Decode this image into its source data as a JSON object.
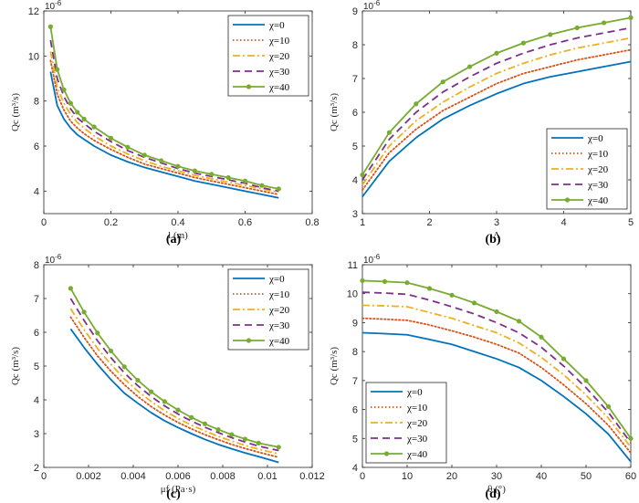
{
  "series_styles": [
    {
      "name": "χ=0",
      "color": "#0072BD",
      "dash": "",
      "marker": false
    },
    {
      "name": "χ=10",
      "color": "#D95319",
      "dash": "1.5,2.5",
      "marker": false
    },
    {
      "name": "χ=20",
      "color": "#EDB120",
      "dash": "8,3,2,3",
      "marker": false
    },
    {
      "name": "χ=30",
      "color": "#7E2F8E",
      "dash": "8,5",
      "marker": false
    },
    {
      "name": "χ=40",
      "color": "#77AC30",
      "dash": "",
      "marker": true
    }
  ],
  "chart_data": [
    {
      "id": "a",
      "panel_label": "(a)",
      "type": "line",
      "xlabel": "l (m)",
      "ylabel": "Qc (m³/s)",
      "exponent": "10-6",
      "xlim": [
        0,
        0.8
      ],
      "ylim": [
        3,
        12
      ],
      "xticks": [
        0,
        0.2,
        0.4,
        0.6,
        0.8
      ],
      "xtick_labels": [
        "0",
        "0.2",
        "0.4",
        "0.6",
        "0.8"
      ],
      "yticks": [
        4,
        6,
        8,
        10,
        12
      ],
      "ytick_labels": [
        "4",
        "6",
        "8",
        "10",
        "12"
      ],
      "legend": "top-right",
      "x": [
        0.02,
        0.04,
        0.06,
        0.08,
        0.1,
        0.12,
        0.15,
        0.2,
        0.25,
        0.3,
        0.35,
        0.4,
        0.45,
        0.5,
        0.55,
        0.6,
        0.65,
        0.7
      ],
      "series": [
        {
          "name": "χ=0",
          "values": [
            9.3,
            7.8,
            7.2,
            6.8,
            6.5,
            6.3,
            6.0,
            5.6,
            5.3,
            5.05,
            4.85,
            4.65,
            4.45,
            4.3,
            4.15,
            4.0,
            3.85,
            3.7
          ]
        },
        {
          "name": "χ=10",
          "values": [
            9.8,
            8.3,
            7.6,
            7.1,
            6.8,
            6.55,
            6.25,
            5.85,
            5.5,
            5.2,
            5.0,
            4.8,
            4.6,
            4.45,
            4.3,
            4.15,
            4.0,
            3.85
          ]
        },
        {
          "name": "χ=20",
          "values": [
            10.2,
            8.6,
            7.9,
            7.4,
            7.05,
            6.8,
            6.45,
            6.0,
            5.65,
            5.35,
            5.1,
            4.9,
            4.7,
            4.55,
            4.4,
            4.25,
            4.1,
            3.95
          ]
        },
        {
          "name": "χ=30",
          "values": [
            10.7,
            9.0,
            8.2,
            7.65,
            7.25,
            7.0,
            6.65,
            6.2,
            5.8,
            5.5,
            5.25,
            5.0,
            4.8,
            4.65,
            4.5,
            4.35,
            4.15,
            4.0
          ]
        },
        {
          "name": "χ=40",
          "values": [
            11.3,
            9.4,
            8.5,
            7.9,
            7.5,
            7.2,
            6.85,
            6.35,
            5.95,
            5.6,
            5.35,
            5.1,
            4.9,
            4.75,
            4.6,
            4.45,
            4.25,
            4.1
          ]
        }
      ]
    },
    {
      "id": "b",
      "panel_label": "(b)",
      "type": "line",
      "xlabel": "Λ",
      "ylabel": "Qc (m³/s)",
      "exponent": "10-6",
      "xlim": [
        1,
        5
      ],
      "ylim": [
        3,
        9
      ],
      "xticks": [
        1,
        2,
        3,
        4,
        5
      ],
      "xtick_labels": [
        "1",
        "2",
        "3",
        "4",
        "5"
      ],
      "yticks": [
        3,
        4,
        5,
        6,
        7,
        8,
        9
      ],
      "ytick_labels": [
        "3",
        "4",
        "5",
        "6",
        "7",
        "8",
        "9"
      ],
      "legend": "bottom-right",
      "x": [
        1,
        1.4,
        1.8,
        2.2,
        2.6,
        3.0,
        3.4,
        3.8,
        4.2,
        4.6,
        5.0
      ],
      "series": [
        {
          "name": "χ=0",
          "values": [
            3.5,
            4.55,
            5.25,
            5.8,
            6.2,
            6.55,
            6.85,
            7.05,
            7.2,
            7.35,
            7.5
          ]
        },
        {
          "name": "χ=10",
          "values": [
            3.7,
            4.8,
            5.5,
            6.05,
            6.45,
            6.85,
            7.15,
            7.35,
            7.55,
            7.7,
            7.85
          ]
        },
        {
          "name": "χ=20",
          "values": [
            3.85,
            5.0,
            5.75,
            6.3,
            6.75,
            7.15,
            7.45,
            7.7,
            7.9,
            8.05,
            8.2
          ]
        },
        {
          "name": "χ=30",
          "values": [
            4.0,
            5.2,
            6.0,
            6.6,
            7.05,
            7.45,
            7.75,
            8.0,
            8.2,
            8.35,
            8.5
          ]
        },
        {
          "name": "χ=40",
          "values": [
            4.15,
            5.4,
            6.25,
            6.9,
            7.35,
            7.75,
            8.05,
            8.3,
            8.5,
            8.65,
            8.8
          ]
        }
      ]
    },
    {
      "id": "c",
      "panel_label": "(c)",
      "type": "line",
      "xlabel": "μf (Pa·s)",
      "ylabel": "Qc (m³/s)",
      "exponent": "10-6",
      "xlim": [
        0,
        0.012
      ],
      "ylim": [
        2,
        8
      ],
      "xticks": [
        0,
        0.002,
        0.004,
        0.006,
        0.008,
        0.01,
        0.012
      ],
      "xtick_labels": [
        "0",
        "0.002",
        "0.004",
        "0.006",
        "0.008",
        "0.01",
        "0.012"
      ],
      "yticks": [
        2,
        3,
        4,
        5,
        6,
        7,
        8
      ],
      "ytick_labels": [
        "2",
        "3",
        "4",
        "5",
        "6",
        "7",
        "8"
      ],
      "legend": "top-right",
      "x": [
        0.0012,
        0.0018,
        0.0024,
        0.003,
        0.0036,
        0.0042,
        0.0048,
        0.0054,
        0.006,
        0.0066,
        0.0072,
        0.0078,
        0.0084,
        0.009,
        0.0096,
        0.0105
      ],
      "series": [
        {
          "name": "χ=0",
          "values": [
            6.1,
            5.55,
            5.05,
            4.6,
            4.2,
            3.9,
            3.62,
            3.38,
            3.18,
            3.0,
            2.83,
            2.68,
            2.55,
            2.43,
            2.32,
            2.15
          ]
        },
        {
          "name": "χ=10",
          "values": [
            6.45,
            5.85,
            5.3,
            4.85,
            4.45,
            4.1,
            3.8,
            3.55,
            3.33,
            3.14,
            2.97,
            2.82,
            2.68,
            2.56,
            2.45,
            2.3
          ]
        },
        {
          "name": "χ=20",
          "values": [
            6.7,
            6.08,
            5.52,
            5.05,
            4.62,
            4.26,
            3.95,
            3.68,
            3.45,
            3.25,
            3.08,
            2.92,
            2.78,
            2.65,
            2.54,
            2.4
          ]
        },
        {
          "name": "χ=30",
          "values": [
            7.0,
            6.35,
            5.75,
            5.25,
            4.8,
            4.42,
            4.1,
            3.82,
            3.58,
            3.37,
            3.19,
            3.03,
            2.88,
            2.75,
            2.63,
            2.5
          ]
        },
        {
          "name": "χ=40",
          "values": [
            7.3,
            6.6,
            5.98,
            5.45,
            4.98,
            4.58,
            4.24,
            3.95,
            3.7,
            3.48,
            3.29,
            3.12,
            2.97,
            2.84,
            2.72,
            2.6
          ]
        }
      ]
    },
    {
      "id": "d",
      "panel_label": "(d)",
      "type": "line",
      "xlabel": "θ (°)",
      "ylabel": "Qc (m³/s)",
      "exponent": "10-6",
      "xlim": [
        0,
        60
      ],
      "ylim": [
        4,
        11
      ],
      "xticks": [
        0,
        10,
        20,
        30,
        40,
        50,
        60
      ],
      "xtick_labels": [
        "0",
        "10",
        "20",
        "30",
        "40",
        "50",
        "60"
      ],
      "yticks": [
        4,
        5,
        6,
        7,
        8,
        9,
        10,
        11
      ],
      "ytick_labels": [
        "4",
        "5",
        "6",
        "7",
        "8",
        "9",
        "10",
        "11"
      ],
      "legend": "bottom-left",
      "x": [
        0,
        5,
        10,
        15,
        20,
        25,
        30,
        35,
        40,
        45,
        50,
        55,
        60
      ],
      "series": [
        {
          "name": "χ=0",
          "values": [
            8.65,
            8.62,
            8.58,
            8.42,
            8.25,
            8.0,
            7.75,
            7.45,
            7.0,
            6.45,
            5.85,
            5.15,
            4.2
          ]
        },
        {
          "name": "χ=10",
          "values": [
            9.15,
            9.12,
            9.08,
            8.92,
            8.72,
            8.5,
            8.25,
            7.95,
            7.45,
            6.85,
            6.2,
            5.45,
            4.5
          ]
        },
        {
          "name": "χ=20",
          "values": [
            9.6,
            9.58,
            9.55,
            9.35,
            9.15,
            8.9,
            8.65,
            8.3,
            7.8,
            7.2,
            6.5,
            5.7,
            4.7
          ]
        },
        {
          "name": "χ=30",
          "values": [
            10.05,
            10.02,
            9.98,
            9.78,
            9.55,
            9.3,
            9.0,
            8.65,
            8.15,
            7.5,
            6.75,
            5.9,
            4.85
          ]
        },
        {
          "name": "χ=40",
          "values": [
            10.45,
            10.42,
            10.38,
            10.18,
            9.95,
            9.68,
            9.38,
            9.05,
            8.5,
            7.75,
            7.0,
            6.1,
            5.0
          ]
        }
      ]
    }
  ]
}
